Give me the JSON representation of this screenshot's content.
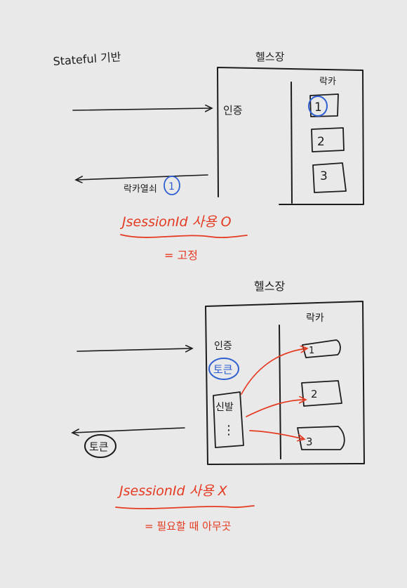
{
  "colors": {
    "ink": "#1c1c1c",
    "red": "#e53a22",
    "blue": "#2f5fd0",
    "background": "#e9e9e9"
  },
  "top": {
    "label": "Stateful 기반",
    "store_title": "헬스장",
    "auth_label": "인증",
    "locker_title": "락카",
    "lockers": [
      "1",
      "2",
      "3"
    ],
    "response_label": "락카열쇠",
    "response_circled": "1",
    "note": "JsessionId 사용 O",
    "note_sub": "= 고정"
  },
  "bottom": {
    "store_title": "헬스장",
    "auth_label": "인증",
    "token_label": "토큰",
    "shoes_label": "신발",
    "shoes_dots": "⋮",
    "locker_title": "락카",
    "lockers": [
      "1",
      "2",
      "3"
    ],
    "response_token": "토큰",
    "note": "JsessionId 사용 X",
    "note_sub": "= 필요할 때 아무곳"
  }
}
